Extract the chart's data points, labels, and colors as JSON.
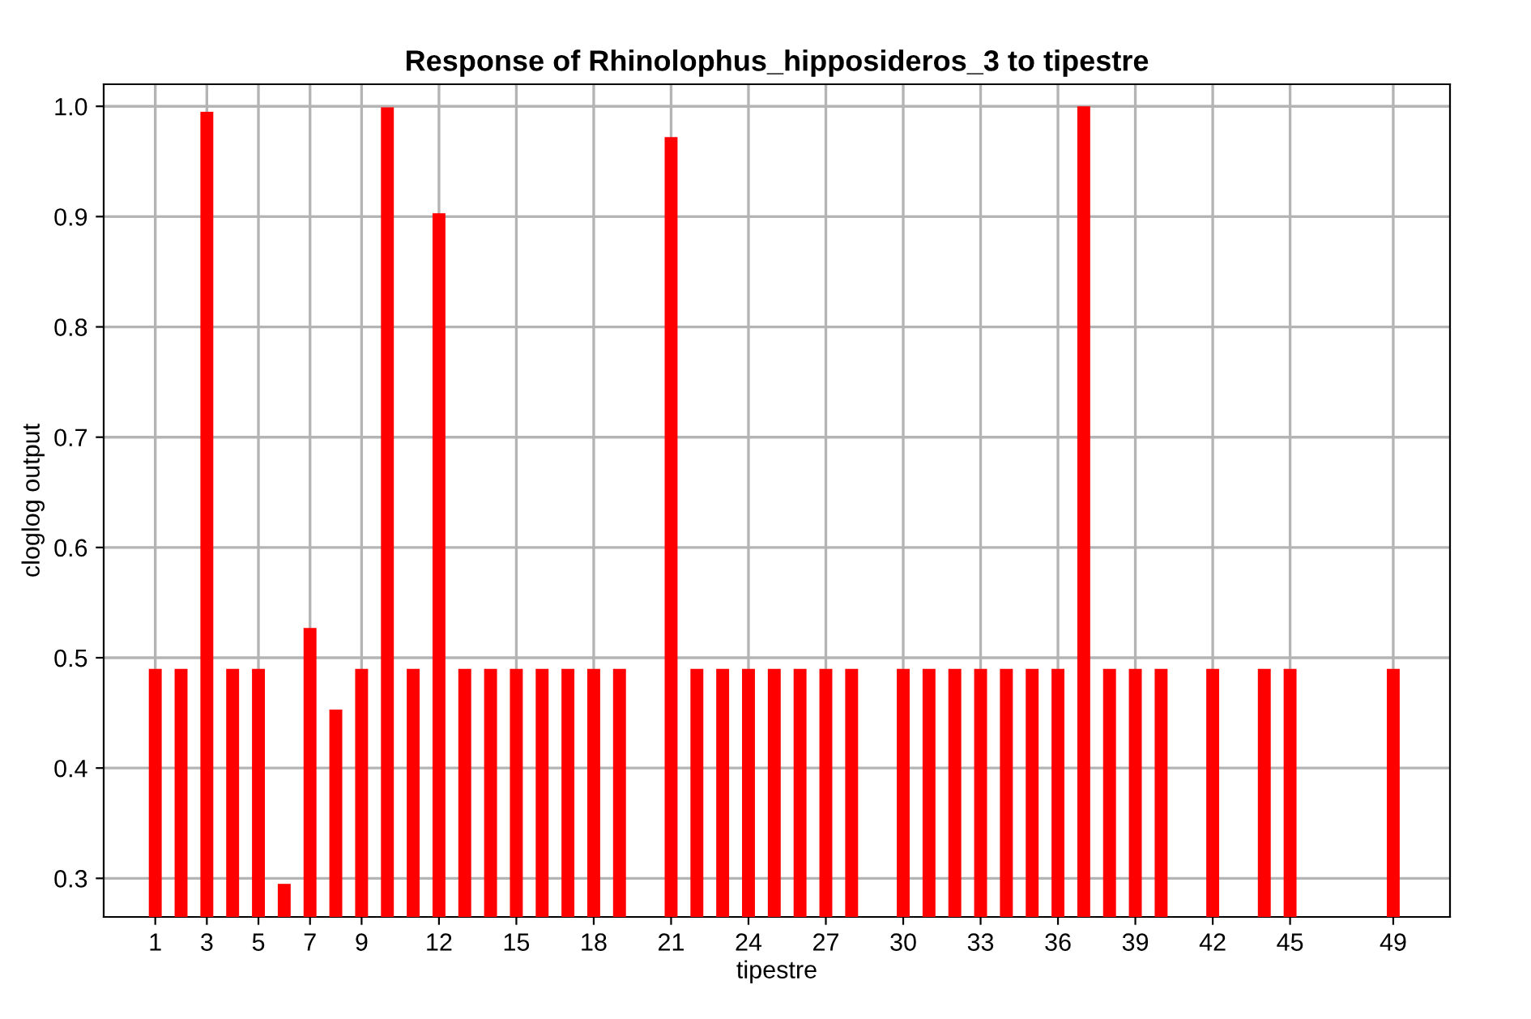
{
  "chart_data": {
    "type": "bar",
    "title": "Response of Rhinolophus_hipposideros_3 to tipestre",
    "xlabel": "tipestre",
    "ylabel": "cloglog output",
    "x": [
      1,
      2,
      3,
      4,
      5,
      6,
      7,
      8,
      9,
      10,
      11,
      12,
      13,
      14,
      15,
      16,
      17,
      18,
      19,
      21,
      22,
      23,
      24,
      25,
      26,
      27,
      28,
      30,
      31,
      32,
      33,
      34,
      35,
      36,
      37,
      38,
      39,
      40,
      42,
      44,
      45,
      49
    ],
    "values": [
      0.49,
      0.49,
      0.995,
      0.49,
      0.49,
      0.295,
      0.527,
      0.453,
      0.49,
      0.999,
      0.49,
      0.903,
      0.49,
      0.49,
      0.49,
      0.49,
      0.49,
      0.49,
      0.49,
      0.972,
      0.49,
      0.49,
      0.49,
      0.49,
      0.49,
      0.49,
      0.49,
      0.49,
      0.49,
      0.49,
      0.49,
      0.49,
      0.49,
      0.49,
      1.0,
      0.49,
      0.49,
      0.49,
      0.49,
      0.49,
      0.49,
      0.49
    ],
    "color": "#ff0000",
    "xlim": [
      -1,
      51.2
    ],
    "xticks": [
      1,
      3,
      5,
      7,
      9,
      12,
      15,
      18,
      21,
      24,
      27,
      30,
      33,
      36,
      39,
      42,
      45,
      49
    ],
    "ylim": [
      0.265,
      1.02
    ],
    "yticks": [
      0.3,
      0.4,
      0.5,
      0.6,
      0.7,
      0.8,
      0.9,
      {
        "value": 1,
        "label": "1.0"
      }
    ],
    "grid": true
  }
}
